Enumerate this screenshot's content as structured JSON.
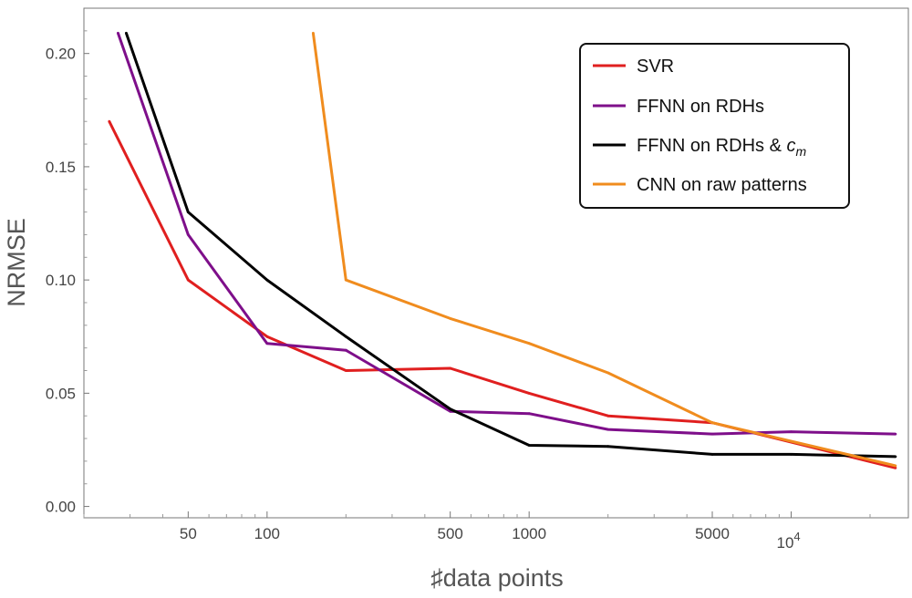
{
  "chart_data": {
    "type": "line",
    "xscale": "log",
    "xlabel": "♯data points",
    "ylabel": "NRMSE",
    "xlim": [
      20,
      28000
    ],
    "ylim": [
      -0.005,
      0.22
    ],
    "x_ticks": [
      {
        "value": 50,
        "label": "50"
      },
      {
        "value": 100,
        "label": "100"
      },
      {
        "value": 500,
        "label": "500"
      },
      {
        "value": 1000,
        "label": "1000"
      },
      {
        "value": 5000,
        "label": "5000"
      }
    ],
    "x_tick_power": {
      "value": 10000,
      "base": "10",
      "exp": "4"
    },
    "y_ticks": [
      {
        "value": 0.0,
        "label": "0.00"
      },
      {
        "value": 0.05,
        "label": "0.05"
      },
      {
        "value": 0.1,
        "label": "0.10"
      },
      {
        "value": 0.15,
        "label": "0.15"
      },
      {
        "value": 0.2,
        "label": "0.20"
      }
    ],
    "legend_position": "top-right",
    "series": [
      {
        "name": "SVR",
        "color": "#e01f1f",
        "x": [
          25,
          50,
          100,
          200,
          500,
          1000,
          2000,
          5000,
          25000
        ],
        "y": [
          0.17,
          0.1,
          0.075,
          0.06,
          0.061,
          0.05,
          0.04,
          0.037,
          0.017
        ]
      },
      {
        "name": "FFNN on RDHs",
        "color": "#7e0f8a",
        "x": [
          27,
          50,
          100,
          200,
          500,
          1000,
          2000,
          5000,
          10000,
          25000
        ],
        "y": [
          0.209,
          0.12,
          0.072,
          0.069,
          0.042,
          0.041,
          0.034,
          0.032,
          0.033,
          0.032
        ]
      },
      {
        "name": "FFNN on RDHs & ",
        "sub_main": "c",
        "sub_index": "m",
        "color": "#000000",
        "x": [
          29,
          50,
          100,
          200,
          500,
          1000,
          2000,
          5000,
          10000,
          25000
        ],
        "y": [
          0.209,
          0.13,
          0.1,
          0.075,
          0.043,
          0.027,
          0.0265,
          0.023,
          0.023,
          0.022
        ]
      },
      {
        "name": "CNN on raw patterns",
        "color": "#f08c1e",
        "x": [
          150,
          200,
          500,
          1000,
          2000,
          5000,
          25000
        ],
        "y": [
          0.209,
          0.1,
          0.083,
          0.072,
          0.059,
          0.037,
          0.018
        ]
      }
    ]
  }
}
